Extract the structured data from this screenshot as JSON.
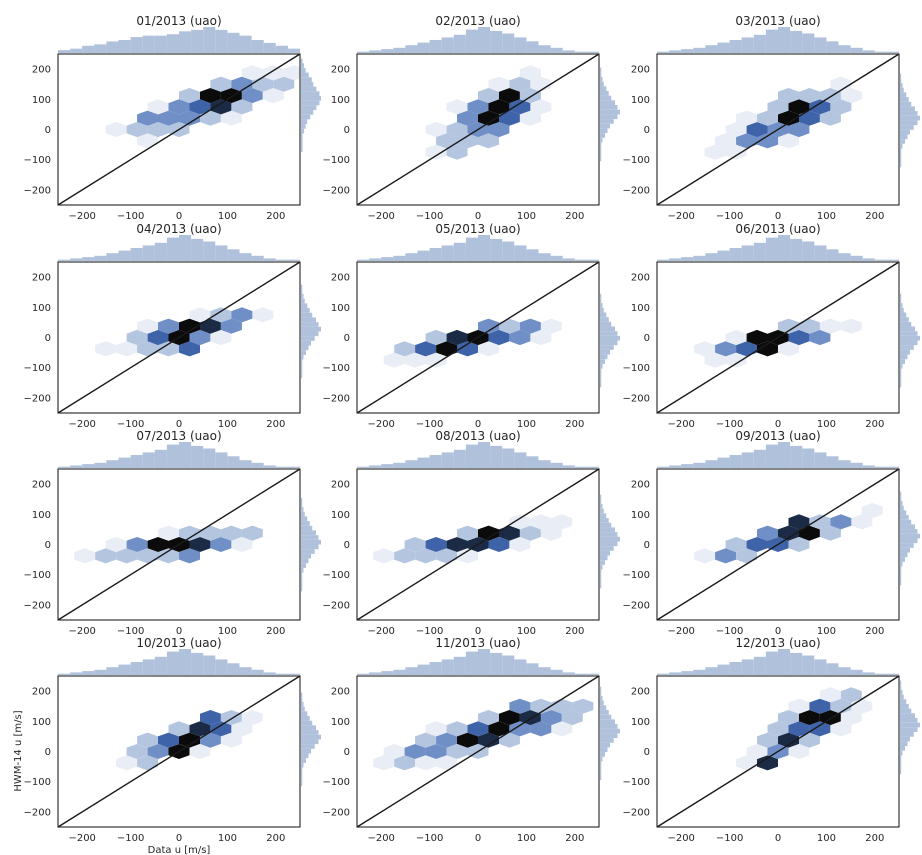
{
  "chart_data": {
    "type": "hexbin-joint-grid",
    "xlabel": "Data u [m/s]",
    "ylabel": "HWM-14 u [m/s]",
    "xlim": [
      -250,
      250
    ],
    "ylim": [
      -250,
      250
    ],
    "xticks": [
      -200,
      -100,
      0,
      100,
      200
    ],
    "yticks": [
      -200,
      -100,
      0,
      100,
      200
    ],
    "reference_line": "y = x",
    "grid": false,
    "marginal_color": "#b0c1dc",
    "hex_colormap": [
      "#e9edf5",
      "#b4c5e0",
      "#6f8fc6",
      "#3f63a8",
      "#1b2a45",
      "#0b0b0b"
    ],
    "panels": [
      {
        "title": "01/2013 (uao)",
        "cx": 60,
        "cy": 80,
        "sx": 90,
        "sy": 60,
        "ang": 0.5,
        "hot": [
          [
            90,
            120
          ],
          [
            70,
            115
          ],
          [
            100,
            120
          ],
          [
            60,
            110
          ]
        ],
        "marg_x": [
          2,
          3,
          5,
          6,
          8,
          9,
          11,
          12,
          12,
          13,
          15,
          16,
          18,
          16,
          14,
          12,
          9,
          7,
          5,
          3
        ],
        "marg_y": [
          1,
          2,
          3,
          5,
          7,
          8,
          10,
          12,
          13,
          12,
          10,
          8,
          6,
          4,
          3,
          2,
          1,
          1,
          1,
          1
        ]
      },
      {
        "title": "02/2013 (uao)",
        "cx": 30,
        "cy": 50,
        "sx": 70,
        "sy": 70,
        "ang": 0.85,
        "hot": [
          [
            60,
            80
          ],
          [
            40,
            90
          ],
          [
            70,
            100
          ],
          [
            20,
            40
          ]
        ],
        "marg_x": [
          1,
          2,
          3,
          4,
          6,
          8,
          10,
          12,
          14,
          18,
          20,
          17,
          15,
          12,
          9,
          6,
          4,
          2,
          1,
          1
        ],
        "marg_y": [
          1,
          1,
          2,
          3,
          5,
          7,
          9,
          12,
          14,
          16,
          14,
          11,
          8,
          6,
          4,
          2,
          1,
          1,
          1,
          1
        ]
      },
      {
        "title": "03/2013 (uao)",
        "cx": 20,
        "cy": 30,
        "sx": 70,
        "sy": 60,
        "ang": 0.6,
        "hot": [
          [
            40,
            100
          ],
          [
            50,
            80
          ],
          [
            30,
            60
          ],
          [
            10,
            40
          ]
        ],
        "marg_x": [
          1,
          2,
          3,
          4,
          6,
          8,
          10,
          12,
          14,
          18,
          20,
          17,
          15,
          12,
          9,
          6,
          4,
          2,
          1,
          1
        ],
        "marg_y": [
          1,
          1,
          2,
          3,
          5,
          7,
          9,
          12,
          14,
          16,
          14,
          11,
          8,
          6,
          4,
          2,
          1,
          1,
          1,
          1
        ]
      },
      {
        "title": "04/2013 (uao)",
        "cx": 20,
        "cy": 20,
        "sx": 70,
        "sy": 50,
        "ang": 0.4,
        "hot": [
          [
            20,
            20
          ],
          [
            40,
            30
          ],
          [
            0,
            10
          ],
          [
            30,
            -30
          ]
        ],
        "marg_x": [
          1,
          2,
          3,
          4,
          6,
          8,
          10,
          12,
          14,
          18,
          20,
          17,
          15,
          12,
          9,
          6,
          4,
          2,
          1,
          1
        ],
        "marg_y": [
          1,
          1,
          2,
          3,
          5,
          7,
          9,
          12,
          14,
          16,
          14,
          11,
          8,
          6,
          4,
          2,
          1,
          1,
          1,
          1
        ]
      },
      {
        "title": "05/2013 (uao)",
        "cx": -10,
        "cy": -10,
        "sx": 80,
        "sy": 40,
        "ang": 0.3,
        "hot": [
          [
            -60,
            -30
          ],
          [
            -20,
            -10
          ],
          [
            20,
            20
          ],
          [
            -40,
            -20
          ]
        ],
        "marg_x": [
          1,
          2,
          3,
          4,
          6,
          8,
          10,
          12,
          14,
          18,
          20,
          17,
          15,
          12,
          9,
          6,
          4,
          2,
          1,
          1
        ],
        "marg_y": [
          1,
          1,
          2,
          3,
          5,
          7,
          9,
          12,
          14,
          16,
          14,
          11,
          8,
          6,
          4,
          2,
          1,
          1,
          1,
          1
        ]
      },
      {
        "title": "06/2013 (uao)",
        "cx": -10,
        "cy": -10,
        "sx": 70,
        "sy": 40,
        "ang": 0.3,
        "hot": [
          [
            -40,
            -10
          ],
          [
            -20,
            -50
          ],
          [
            0,
            0
          ],
          [
            20,
            10
          ]
        ],
        "marg_x": [
          1,
          2,
          3,
          4,
          6,
          8,
          10,
          12,
          14,
          18,
          20,
          17,
          15,
          12,
          9,
          6,
          4,
          2,
          1,
          1
        ],
        "marg_y": [
          1,
          1,
          2,
          3,
          5,
          7,
          9,
          12,
          14,
          16,
          14,
          11,
          8,
          6,
          4,
          2,
          1,
          1,
          1,
          1
        ]
      },
      {
        "title": "07/2013 (uao)",
        "cx": -10,
        "cy": 0,
        "sx": 80,
        "sy": 40,
        "ang": 0.2,
        "hot": [
          [
            -30,
            0
          ],
          [
            -10,
            10
          ],
          [
            10,
            -20
          ]
        ],
        "marg_x": [
          1,
          2,
          3,
          4,
          6,
          8,
          10,
          12,
          14,
          18,
          20,
          17,
          15,
          12,
          9,
          6,
          4,
          2,
          1,
          1
        ],
        "marg_y": [
          1,
          1,
          2,
          3,
          5,
          7,
          9,
          12,
          14,
          16,
          14,
          11,
          8,
          6,
          4,
          2,
          1,
          1,
          1,
          1
        ]
      },
      {
        "title": "08/2013 (uao)",
        "cx": -10,
        "cy": 10,
        "sx": 80,
        "sy": 40,
        "ang": 0.3,
        "hot": [
          [
            20,
            10
          ],
          [
            40,
            40
          ],
          [
            -20,
            -10
          ],
          [
            0,
            20
          ]
        ],
        "marg_x": [
          1,
          2,
          3,
          4,
          6,
          8,
          10,
          12,
          14,
          18,
          20,
          17,
          15,
          12,
          9,
          6,
          4,
          2,
          1,
          1
        ],
        "marg_y": [
          1,
          1,
          2,
          3,
          5,
          7,
          9,
          12,
          14,
          16,
          14,
          11,
          8,
          6,
          4,
          2,
          1,
          1,
          1,
          1
        ]
      },
      {
        "title": "09/2013 (uao)",
        "cx": 10,
        "cy": 20,
        "sx": 80,
        "sy": 40,
        "ang": 0.4,
        "hot": [
          [
            40,
            70
          ],
          [
            30,
            60
          ],
          [
            10,
            20
          ],
          [
            50,
            50
          ]
        ],
        "marg_x": [
          1,
          2,
          3,
          4,
          6,
          8,
          10,
          12,
          14,
          18,
          20,
          17,
          15,
          12,
          9,
          6,
          4,
          2,
          1,
          1
        ],
        "marg_y": [
          1,
          1,
          2,
          3,
          5,
          7,
          9,
          12,
          14,
          16,
          14,
          11,
          8,
          6,
          4,
          2,
          1,
          1,
          1,
          1
        ]
      },
      {
        "title": "10/2013 (uao)",
        "cx": 20,
        "cy": 40,
        "sx": 70,
        "sy": 45,
        "ang": 0.5,
        "hot": [
          [
            20,
            30
          ],
          [
            60,
            100
          ],
          [
            40,
            60
          ],
          [
            0,
            10
          ]
        ],
        "marg_x": [
          1,
          2,
          3,
          4,
          6,
          8,
          10,
          12,
          14,
          18,
          20,
          17,
          15,
          12,
          9,
          6,
          4,
          2,
          1,
          1
        ],
        "marg_y": [
          1,
          1,
          2,
          3,
          5,
          7,
          9,
          12,
          14,
          16,
          14,
          11,
          8,
          6,
          4,
          2,
          1,
          1,
          1,
          1
        ]
      },
      {
        "title": "11/2013 (uao)",
        "cx": 20,
        "cy": 60,
        "sx": 100,
        "sy": 60,
        "ang": 0.45,
        "hot": [
          [
            90,
            130
          ],
          [
            70,
            120
          ],
          [
            30,
            80
          ],
          [
            0,
            40
          ]
        ],
        "marg_x": [
          1,
          2,
          3,
          4,
          6,
          8,
          10,
          12,
          14,
          18,
          20,
          17,
          15,
          12,
          9,
          6,
          4,
          2,
          1,
          1
        ],
        "marg_y": [
          1,
          1,
          2,
          3,
          5,
          7,
          9,
          12,
          14,
          16,
          14,
          11,
          8,
          6,
          4,
          2,
          1,
          1,
          1,
          1
        ]
      },
      {
        "title": "12/2013 (uao)",
        "cx": 60,
        "cy": 80,
        "sx": 70,
        "sy": 60,
        "ang": 0.8,
        "hot": [
          [
            80,
            120
          ],
          [
            100,
            130
          ],
          [
            60,
            100
          ],
          [
            -30,
            -40
          ]
        ],
        "marg_x": [
          1,
          2,
          3,
          4,
          6,
          8,
          10,
          12,
          14,
          18,
          20,
          17,
          15,
          12,
          9,
          6,
          4,
          2,
          1,
          1
        ],
        "marg_y": [
          1,
          1,
          2,
          3,
          5,
          7,
          9,
          12,
          14,
          16,
          14,
          11,
          8,
          6,
          4,
          2,
          1,
          1,
          1,
          1
        ]
      }
    ]
  }
}
